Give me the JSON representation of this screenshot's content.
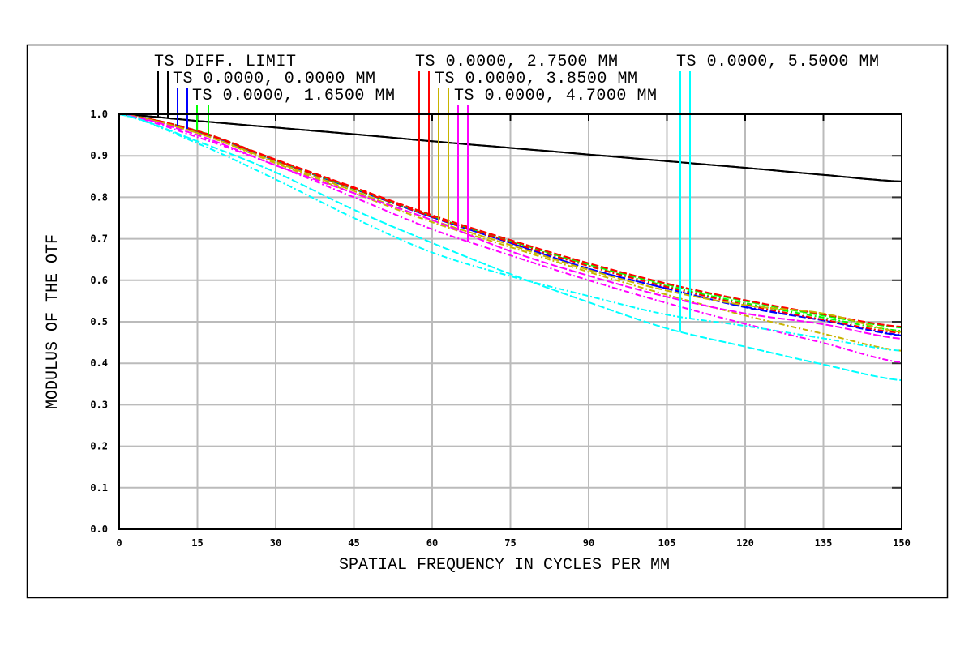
{
  "chart_data": {
    "type": "line",
    "title": "",
    "xlabel": "SPATIAL FREQUENCY IN CYCLES PER MM",
    "ylabel": "MODULUS OF THE OTF",
    "xlim": [
      0,
      150
    ],
    "ylim": [
      0,
      1.0
    ],
    "grid": true,
    "legend_placement": "top",
    "x_ticks": [
      "0",
      "15",
      "30",
      "45",
      "60",
      "75",
      "90",
      "105",
      "120",
      "135",
      "150"
    ],
    "y_ticks": [
      "0.0",
      "0.1",
      "0.2",
      "0.3",
      "0.4",
      "0.5",
      "0.6",
      "0.7",
      "0.8",
      "0.9",
      "1.0"
    ],
    "x": [
      0,
      15,
      30,
      45,
      60,
      75,
      90,
      105,
      120,
      135,
      150
    ],
    "legend": [
      {
        "label": "TS DIFF. LIMIT",
        "color": "#000000"
      },
      {
        "label": "TS 0.0000, 0.0000 MM",
        "color": "#0000ff"
      },
      {
        "label": "TS 0.0000, 1.6500 MM",
        "color": "#00ff00"
      },
      {
        "label": "TS 0.0000, 2.7500 MM",
        "color": "#ff0000"
      },
      {
        "label": "TS 0.0000, 3.8500 MM",
        "color": "#c8b400"
      },
      {
        "label": "TS 0.0000, 4.7000 MM",
        "color": "#ff00ff"
      },
      {
        "label": "TS 0.0000, 5.5000 MM",
        "color": "#00ffff"
      }
    ],
    "series": [
      {
        "legend_index": 0,
        "component": "T",
        "color": "#000000",
        "values": [
          1,
          0.984,
          0.968,
          0.952,
          0.935,
          0.919,
          0.903,
          0.887,
          0.871,
          0.854,
          0.838
        ]
      },
      {
        "legend_index": 0,
        "component": "S",
        "color": "#000000",
        "values": [
          1,
          0.984,
          0.968,
          0.952,
          0.935,
          0.919,
          0.903,
          0.887,
          0.871,
          0.854,
          0.838
        ]
      },
      {
        "legend_index": 1,
        "component": "T",
        "color": "#0000ff",
        "values": [
          1,
          0.958,
          0.888,
          0.82,
          0.752,
          0.69,
          0.628,
          0.58,
          0.535,
          0.503,
          0.467
        ]
      },
      {
        "legend_index": 1,
        "component": "S",
        "color": "#0000ff",
        "values": [
          1,
          0.958,
          0.888,
          0.82,
          0.752,
          0.69,
          0.628,
          0.58,
          0.536,
          0.505,
          0.468
        ]
      },
      {
        "legend_index": 2,
        "component": "T",
        "color": "#00ff00",
        "values": [
          1,
          0.96,
          0.89,
          0.822,
          0.755,
          0.695,
          0.638,
          0.59,
          0.55,
          0.515,
          0.486
        ]
      },
      {
        "legend_index": 2,
        "component": "S",
        "color": "#00ff00",
        "values": [
          1,
          0.96,
          0.889,
          0.82,
          0.754,
          0.693,
          0.635,
          0.586,
          0.545,
          0.51,
          0.478
        ]
      },
      {
        "legend_index": 3,
        "component": "T",
        "color": "#ff0000",
        "values": [
          1,
          0.96,
          0.891,
          0.824,
          0.757,
          0.697,
          0.641,
          0.592,
          0.552,
          0.518,
          0.488
        ]
      },
      {
        "legend_index": 3,
        "component": "S",
        "color": "#ff0000",
        "values": [
          1,
          0.959,
          0.889,
          0.821,
          0.753,
          0.692,
          0.634,
          0.584,
          0.541,
          0.505,
          0.473
        ]
      },
      {
        "legend_index": 4,
        "component": "T",
        "color": "#c8b400",
        "values": [
          1,
          0.955,
          0.885,
          0.815,
          0.745,
          0.685,
          0.625,
          0.575,
          0.54,
          0.52,
          0.475
        ]
      },
      {
        "legend_index": 4,
        "component": "S",
        "color": "#c8b400",
        "values": [
          1,
          0.955,
          0.882,
          0.81,
          0.74,
          0.68,
          0.62,
          0.565,
          0.515,
          0.471,
          0.43
        ]
      },
      {
        "legend_index": 5,
        "component": "T",
        "color": "#ff00ff",
        "values": [
          1,
          0.95,
          0.877,
          0.81,
          0.745,
          0.67,
          0.611,
          0.56,
          0.52,
          0.494,
          0.459
        ]
      },
      {
        "legend_index": 5,
        "component": "S",
        "color": "#ff00ff",
        "values": [
          1,
          0.945,
          0.877,
          0.8,
          0.723,
          0.66,
          0.6,
          0.545,
          0.495,
          0.449,
          0.402
        ]
      },
      {
        "legend_index": 6,
        "component": "T",
        "color": "#00ffff",
        "values": [
          1,
          0.935,
          0.86,
          0.77,
          0.69,
          0.615,
          0.547,
          0.484,
          0.44,
          0.397,
          0.359
        ]
      },
      {
        "legend_index": 6,
        "component": "S",
        "color": "#00ffff",
        "values": [
          1,
          0.93,
          0.843,
          0.75,
          0.667,
          0.61,
          0.562,
          0.517,
          0.49,
          0.46,
          0.43
        ]
      }
    ]
  }
}
